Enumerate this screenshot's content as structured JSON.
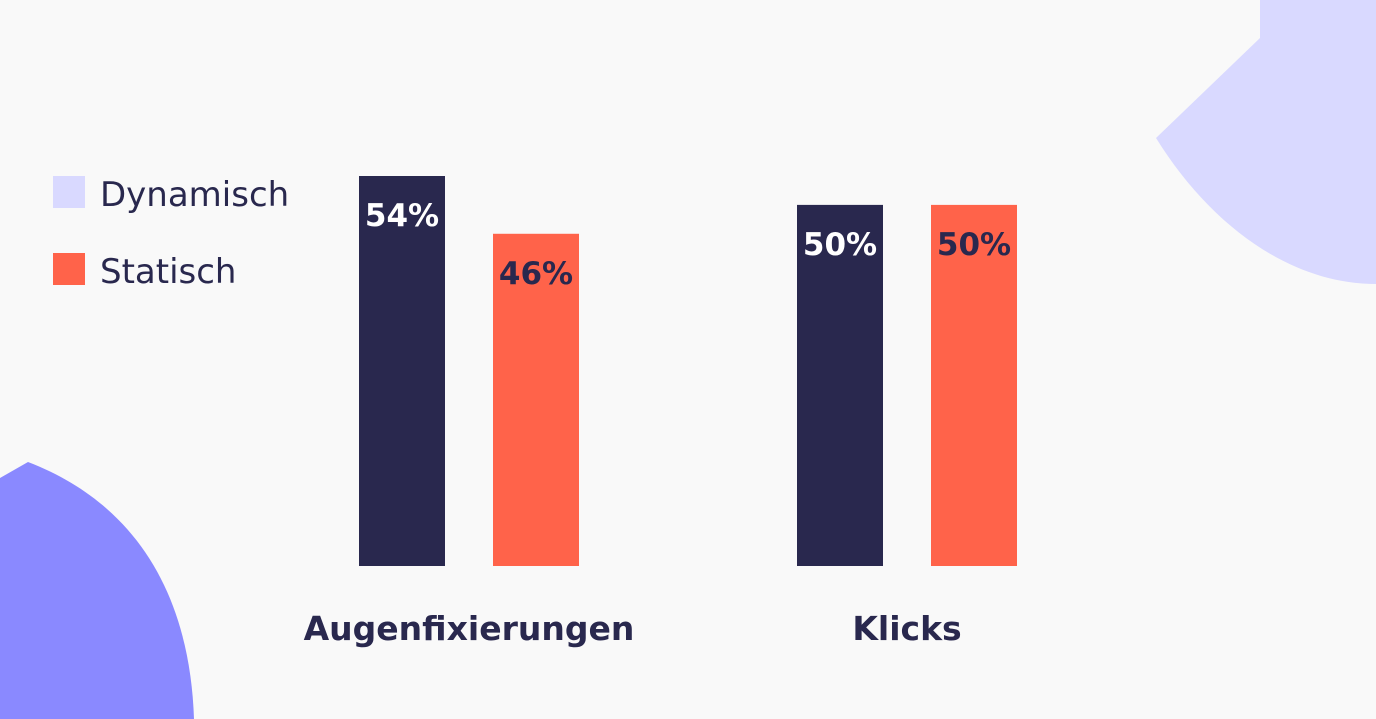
{
  "chart_data": {
    "type": "bar",
    "categories": [
      "Augenfixierungen",
      "Klicks"
    ],
    "series": [
      {
        "name": "Dynamisch",
        "values": [
          54,
          50
        ],
        "value_labels": [
          "54%",
          "50%"
        ],
        "color": "#29284e",
        "label_color": "#ffffff"
      },
      {
        "name": "Statisch",
        "values": [
          46,
          50
        ],
        "value_labels": [
          "46%",
          "50%"
        ],
        "color": "#ff634a",
        "label_color": "#29284e"
      }
    ],
    "legend": {
      "placement": "top-left",
      "swatch_colors": [
        "#d9d9ff",
        "#ff634a"
      ]
    },
    "ylim": [
      0,
      54
    ],
    "grid": false,
    "title": "",
    "xlabel": "",
    "ylabel": ""
  },
  "colors": {
    "background": "#f9f9f9",
    "text": "#29284e",
    "decor_light": "#d9d9ff",
    "decor_medium": "#8a89ff"
  }
}
